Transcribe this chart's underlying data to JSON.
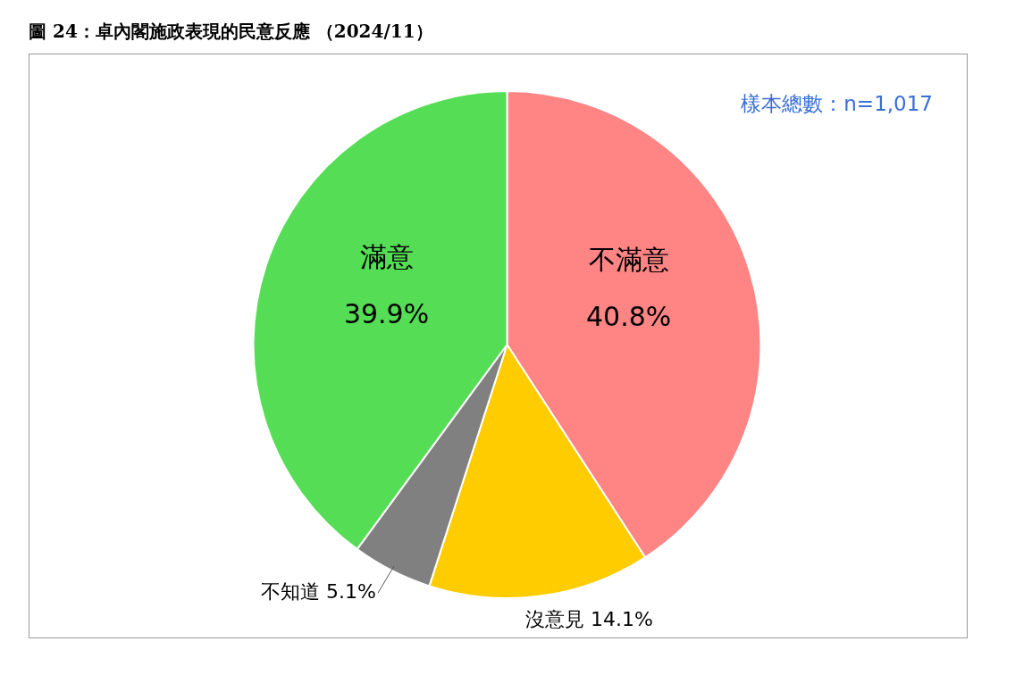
{
  "chart_data": {
    "type": "pie",
    "title": "圖 24：卓內閣施政表現的民意反應 （2024/11）",
    "annotations": [
      "樣本總數：n=1,017"
    ],
    "categories": [
      "不滿意",
      "沒意見",
      "不知道",
      "滿意"
    ],
    "values": [
      40.8,
      14.1,
      5.1,
      39.9
    ],
    "value_labels": [
      "40.8%",
      "14.1%",
      "5.1%",
      "39.9%"
    ],
    "colors": [
      "#ff8585",
      "#ffcc00",
      "#808080",
      "#55dd55"
    ],
    "legend": false
  }
}
